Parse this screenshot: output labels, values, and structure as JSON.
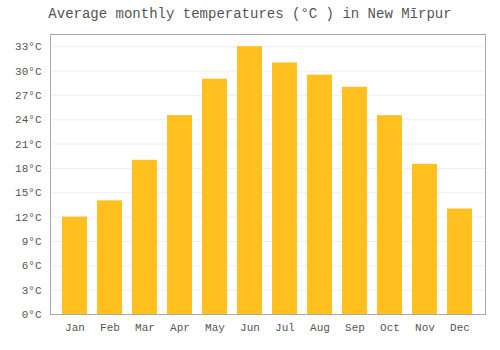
{
  "chart_data": {
    "type": "bar",
    "title": "Average monthly temperatures (°C ) in New Mīrpur",
    "categories": [
      "Jan",
      "Feb",
      "Mar",
      "Apr",
      "May",
      "Jun",
      "Jul",
      "Aug",
      "Sep",
      "Oct",
      "Nov",
      "Dec"
    ],
    "values": [
      12,
      14,
      19,
      24.5,
      29,
      33,
      31,
      29.5,
      28,
      24.5,
      18.5,
      13
    ],
    "color": "#FFC020",
    "ylim": [
      0,
      34.5
    ],
    "yticks": [
      {
        "value": 0,
        "label": "0°C"
      },
      {
        "value": 3,
        "label": "3°C"
      },
      {
        "value": 6,
        "label": "6°C"
      },
      {
        "value": 9,
        "label": "9°C"
      },
      {
        "value": 12,
        "label": "12°C"
      },
      {
        "value": 15,
        "label": "15°C"
      },
      {
        "value": 18,
        "label": "18°C"
      },
      {
        "value": 21,
        "label": "21°C"
      },
      {
        "value": 24,
        "label": "24°C"
      },
      {
        "value": 27,
        "label": "27°C"
      },
      {
        "value": 30,
        "label": "30°C"
      },
      {
        "value": 33,
        "label": "33°C"
      }
    ],
    "grid": true
  }
}
